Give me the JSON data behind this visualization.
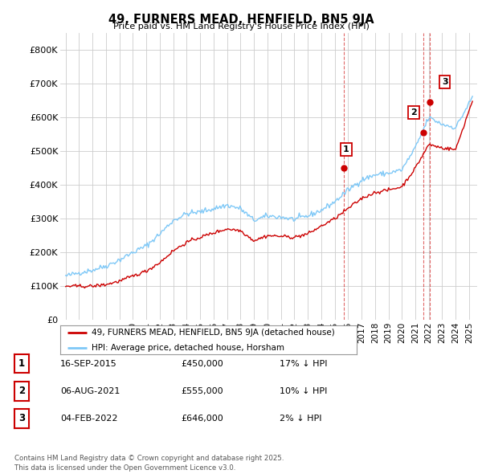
{
  "title": "49, FURNERS MEAD, HENFIELD, BN5 9JA",
  "subtitle": "Price paid vs. HM Land Registry's House Price Index (HPI)",
  "hpi_color": "#7ec8f7",
  "price_color": "#cc0000",
  "bg_color": "#ffffff",
  "grid_color": "#cccccc",
  "ylim": [
    0,
    850000
  ],
  "yticks": [
    0,
    100000,
    200000,
    300000,
    400000,
    500000,
    600000,
    700000,
    800000
  ],
  "ytick_labels": [
    "£0",
    "£100K",
    "£200K",
    "£300K",
    "£400K",
    "£500K",
    "£600K",
    "£700K",
    "£800K"
  ],
  "xlim_min": 1994.6,
  "xlim_max": 2025.6,
  "transactions": [
    {
      "date_num": 2015.71,
      "price": 450000,
      "label": "1"
    },
    {
      "date_num": 2021.59,
      "price": 555000,
      "label": "2"
    },
    {
      "date_num": 2022.09,
      "price": 646000,
      "label": "3"
    }
  ],
  "table_rows": [
    {
      "num": "1",
      "date": "16-SEP-2015",
      "price": "£450,000",
      "change": "17% ↓ HPI"
    },
    {
      "num": "2",
      "date": "06-AUG-2021",
      "price": "£555,000",
      "change": "10% ↓ HPI"
    },
    {
      "num": "3",
      "date": "04-FEB-2022",
      "price": "£646,000",
      "change": "2% ↓ HPI"
    }
  ],
  "footer": "Contains HM Land Registry data © Crown copyright and database right 2025.\nThis data is licensed under the Open Government Licence v3.0.",
  "legend_price_label": "49, FURNERS MEAD, HENFIELD, BN5 9JA (detached house)",
  "legend_hpi_label": "HPI: Average price, detached house, Horsham"
}
